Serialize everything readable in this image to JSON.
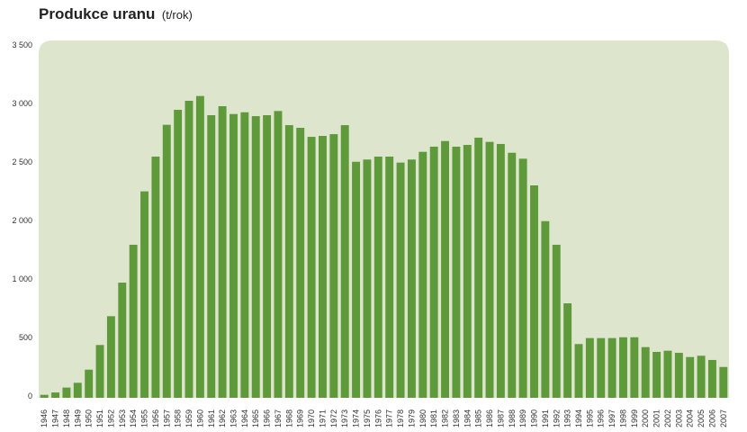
{
  "chart_data": {
    "type": "bar",
    "title": "Produkce uranu",
    "unit": "(t/rok)",
    "xlabel": "",
    "ylabel": "",
    "ylim": [
      0,
      3500
    ],
    "y_ticks": [
      {
        "value": 0,
        "label": "0"
      },
      {
        "value": 500,
        "label": "500"
      },
      {
        "value": 1000,
        "label": "1 000"
      },
      {
        "value": 2000,
        "label": "2 000"
      },
      {
        "value": 2500,
        "label": "2 500"
      },
      {
        "value": 3000,
        "label": "3 000"
      },
      {
        "value": 3500,
        "label": "3 500"
      }
    ],
    "grid": false,
    "categories": [
      "1946",
      "1947",
      "1948",
      "1949",
      "1950",
      "1951",
      "1952",
      "1953",
      "1954",
      "1955",
      "1956",
      "1957",
      "1958",
      "1959",
      "1960",
      "1961",
      "1962",
      "1963",
      "1964",
      "1965",
      "1966",
      "1967",
      "1968",
      "1969",
      "1970",
      "1971",
      "1972",
      "1973",
      "1974",
      "1975",
      "1976",
      "1977",
      "1978",
      "1979",
      "1980",
      "1981",
      "1982",
      "1983",
      "1984",
      "1985",
      "1986",
      "1987",
      "1988",
      "1989",
      "1990",
      "1991",
      "1992",
      "1993",
      "1994",
      "1995",
      "1996",
      "1997",
      "1998",
      "1999",
      "2000",
      "2001",
      "2002",
      "2003",
      "2004",
      "2005",
      "2006",
      "2007"
    ],
    "values": [
      10,
      30,
      72,
      113,
      225,
      436,
      682,
      969,
      1585,
      2249,
      2546,
      2818,
      2946,
      3023,
      3064,
      2900,
      2977,
      2910,
      2925,
      2892,
      2900,
      2936,
      2815,
      2792,
      2715,
      2723,
      2738,
      2815,
      2502,
      2521,
      2546,
      2546,
      2495,
      2521,
      2587,
      2631,
      2679,
      2631,
      2646,
      2708,
      2672,
      2654,
      2579,
      2528,
      2300,
      1989,
      1585,
      792,
      444,
      495,
      495,
      495,
      502,
      502,
      418,
      377,
      387,
      369,
      333,
      344,
      308,
      248
    ],
    "colors": {
      "bar": "#5e9a3a",
      "plot_bg": "#dde5cd"
    }
  }
}
